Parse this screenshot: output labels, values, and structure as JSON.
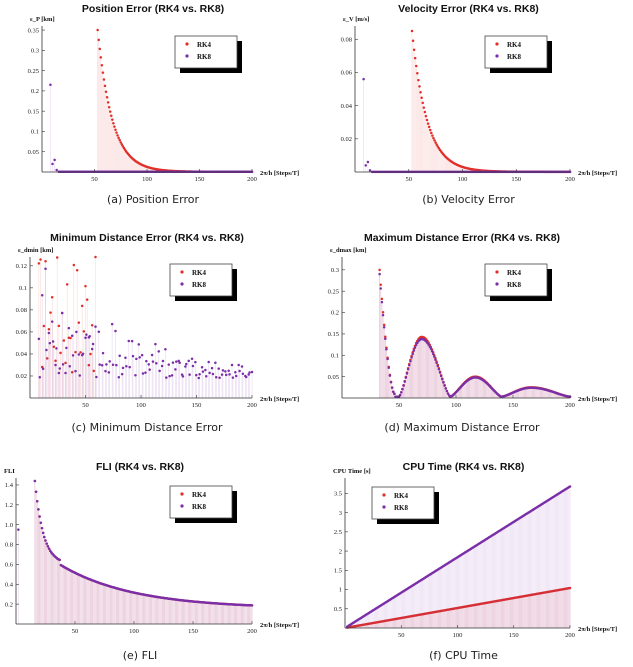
{
  "chart_data": [
    {
      "type": "scatter",
      "title": "Position Error (RK4 vs. RK8)",
      "ylabel": "ε_P [km]",
      "xlabel": "2π/h [Steps/T]",
      "caption": "(a) Position Error",
      "xlim": [
        0,
        200
      ],
      "ylim": [
        0,
        0.36
      ],
      "xticks": [
        50,
        100,
        150,
        200
      ],
      "yticks": [
        0.05,
        0.1,
        0.15,
        0.2,
        0.25,
        0.3,
        0.35
      ],
      "legend": "top-right",
      "series": [
        {
          "name": "RK4",
          "color": "#e0302a",
          "model": "decay",
          "x_start": 53,
          "x_end": 200,
          "y_start": 0.35,
          "y_end": 0.0005,
          "tau": 14
        },
        {
          "name": "RK8",
          "color": "#7a2ea8",
          "model": "spikes",
          "x": [
            8,
            10,
            12,
            14
          ],
          "y": [
            0.215,
            0.02,
            0.03,
            0.005
          ],
          "floor_y": 0.0005
        }
      ]
    },
    {
      "type": "scatter",
      "title": "Velocity Error (RK4 vs. RK8)",
      "ylabel": "ε_V [m/s]",
      "xlabel": "2π/h [Steps/T]",
      "caption": "(b) Velocity Error",
      "xlim": [
        0,
        200
      ],
      "ylim": [
        0,
        0.088
      ],
      "xticks": [
        50,
        100,
        150,
        200
      ],
      "yticks": [
        0.02,
        0.04,
        0.06,
        0.08
      ],
      "legend": "top-right",
      "series": [
        {
          "name": "RK4",
          "color": "#e0302a",
          "model": "decay",
          "x_start": 53,
          "x_end": 200,
          "y_start": 0.085,
          "y_end": 0.0001,
          "tau": 14
        },
        {
          "name": "RK8",
          "color": "#7a2ea8",
          "model": "spikes",
          "x": [
            8,
            10,
            12,
            14
          ],
          "y": [
            0.056,
            0.004,
            0.006,
            0.001
          ],
          "floor_y": 0.0001
        }
      ]
    },
    {
      "type": "scatter",
      "title": "Minimum Distance Error (RK4 vs. RK8)",
      "ylabel": "ε_dmin [km]",
      "xlabel": "2π/h [Steps/T]",
      "caption": "(c) Minimum Distance Error",
      "xlim": [
        0,
        200
      ],
      "ylim": [
        0,
        0.128
      ],
      "xticks": [
        50,
        100,
        150,
        200
      ],
      "yticks": [
        0.02,
        0.04,
        0.06,
        0.08,
        0.1,
        0.12
      ],
      "legend": "top-right",
      "series": [
        {
          "name": "RK4",
          "color": "#e0302a",
          "model": "noisy",
          "x_start": 8,
          "x_end": 60,
          "amp": 0.115,
          "decay": 0.0
        },
        {
          "name": "RK8",
          "color": "#7a2ea8",
          "model": "noisy",
          "x_start": 8,
          "x_end": 200,
          "amp": 0.11,
          "decay": 0.012
        }
      ]
    },
    {
      "type": "scatter",
      "title": "Maximum Distance Error (RK4 vs. RK8)",
      "ylabel": "ε_dmax [km]",
      "xlabel": "2π/h [Steps/T]",
      "caption": "(d) Maximum Distance Error",
      "xlim": [
        0,
        200
      ],
      "ylim": [
        0,
        0.33
      ],
      "xticks": [
        50,
        100,
        150,
        200
      ],
      "yticks": [
        0.05,
        0.1,
        0.15,
        0.2,
        0.25,
        0.3
      ],
      "legend": "top-right",
      "series": [
        {
          "name": "RK4",
          "color": "#e0302a",
          "model": "bumps",
          "x_start": 33,
          "x_end": 200,
          "drop_x": [
            33,
            46
          ],
          "drop_y": [
            0.29,
            0.01
          ],
          "bumps": [
            {
              "l": 50,
              "r": 95,
              "peak_x": 70,
              "peak_y": 0.14
            },
            {
              "l": 95,
              "r": 140,
              "peak_x": 117,
              "peak_y": 0.047
            },
            {
              "l": 140,
              "r": 200,
              "peak_x": 166,
              "peak_y": 0.022
            }
          ]
        },
        {
          "name": "RK8",
          "color": "#7a2ea8",
          "model": "bumps",
          "x_start": 33,
          "x_end": 200,
          "drop_x": [
            33,
            46
          ],
          "drop_y": [
            0.28,
            0.01
          ],
          "bumps": [
            {
              "l": 50,
              "r": 95,
              "peak_x": 70,
              "peak_y": 0.135
            },
            {
              "l": 95,
              "r": 140,
              "peak_x": 117,
              "peak_y": 0.045
            },
            {
              "l": 140,
              "r": 200,
              "peak_x": 166,
              "peak_y": 0.021
            }
          ]
        }
      ]
    },
    {
      "type": "scatter",
      "title": "FLI (RK4 vs. RK8)",
      "ylabel": "FLI",
      "xlabel": "2π/h [Steps/T]",
      "caption": "(e) FLI",
      "xlim": [
        0,
        200
      ],
      "ylim": [
        0,
        1.47
      ],
      "xticks": [
        50,
        100,
        150,
        200
      ],
      "yticks": [
        0.2,
        0.4,
        0.6,
        0.8,
        1.0,
        1.2,
        1.4
      ],
      "legend": "top-right",
      "series": [
        {
          "name": "RK4",
          "color": "#e0302a",
          "model": "fli",
          "x_start": 16,
          "x_end": 200
        },
        {
          "name": "RK8",
          "color": "#7a2ea8",
          "model": "fli",
          "x_start": 16,
          "x_end": 200,
          "extra": [
            {
              "x": 2,
              "y": 0.95
            }
          ]
        }
      ]
    },
    {
      "type": "scatter",
      "title": "CPU Time (RK4 vs. RK8)",
      "ylabel": "CPU Time [s]",
      "xlabel": "2π/h [Steps/T]",
      "caption": "(f) CPU Time",
      "xlim": [
        0,
        200
      ],
      "ylim": [
        0,
        3.9
      ],
      "xticks": [
        50,
        100,
        150,
        200
      ],
      "yticks": [
        0.5,
        1.0,
        1.5,
        2.0,
        2.5,
        3.0,
        3.5
      ],
      "legend": "top-left",
      "series": [
        {
          "name": "RK4",
          "color": "#e0302a",
          "model": "linear",
          "x_start": 2,
          "x_end": 200,
          "slope": 0.0052
        },
        {
          "name": "RK8",
          "color": "#7a2ea8",
          "model": "linear",
          "x_start": 2,
          "x_end": 200,
          "slope": 0.0184
        }
      ]
    }
  ]
}
